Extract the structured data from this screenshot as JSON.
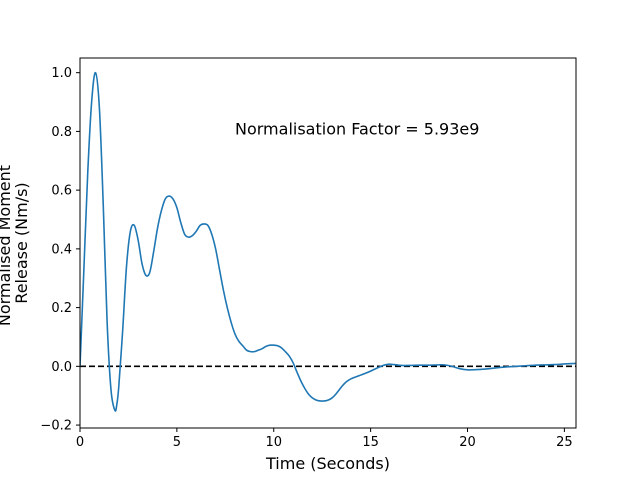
{
  "chart_data": {
    "type": "line",
    "title": "",
    "xlabel": "Time (Seconds)",
    "ylabel_lines": [
      "Normalised Moment",
      "Release (Nm/s)"
    ],
    "xlim": [
      0,
      25.6
    ],
    "ylim": [
      -0.21,
      1.05
    ],
    "xticks": [
      0,
      5,
      10,
      15,
      20,
      25
    ],
    "yticks": [
      -0.2,
      0.0,
      0.2,
      0.4,
      0.6,
      0.8,
      1.0
    ],
    "xtick_labels": [
      "0",
      "5",
      "10",
      "15",
      "20",
      "25"
    ],
    "ytick_labels": [
      "−0.2",
      "0.0",
      "0.2",
      "0.4",
      "0.6",
      "0.8",
      "1.0"
    ],
    "grid": false,
    "annotation": {
      "text": "Normalisation Factor = 5.93e9",
      "x": 8.0,
      "y": 0.81
    },
    "reference_line": {
      "y": 0.0,
      "style": "dashed",
      "color": "#000000"
    },
    "series": [
      {
        "color": "#1f77b4",
        "x": [
          0.0,
          0.2,
          0.4,
          0.6,
          0.8,
          1.0,
          1.2,
          1.4,
          1.6,
          1.8,
          1.9,
          2.0,
          2.2,
          2.4,
          2.6,
          2.8,
          3.0,
          3.2,
          3.4,
          3.6,
          3.8,
          4.0,
          4.2,
          4.4,
          4.6,
          4.8,
          5.0,
          5.2,
          5.4,
          5.6,
          5.8,
          6.0,
          6.2,
          6.4,
          6.6,
          6.8,
          7.0,
          7.2,
          7.4,
          7.6,
          7.8,
          8.0,
          8.2,
          8.4,
          8.6,
          8.8,
          9.0,
          9.2,
          9.4,
          9.6,
          9.8,
          10.0,
          10.2,
          10.4,
          10.6,
          10.8,
          11.0,
          11.2,
          11.4,
          11.6,
          11.8,
          12.0,
          12.2,
          12.4,
          12.6,
          12.8,
          13.0,
          13.2,
          13.4,
          13.6,
          13.8,
          14.0,
          14.4,
          14.8,
          15.2,
          15.6,
          15.9,
          16.2,
          16.6,
          17.0,
          17.5,
          18.0,
          18.5,
          18.8,
          19.2,
          19.6,
          20.0,
          20.5,
          21.0,
          21.5,
          22.0,
          22.5,
          23.0,
          23.5,
          24.0,
          24.5,
          25.0,
          25.6
        ],
        "y": [
          0.0,
          0.33,
          0.66,
          0.9,
          1.0,
          0.88,
          0.55,
          0.15,
          -0.08,
          -0.15,
          -0.13,
          -0.07,
          0.12,
          0.34,
          0.46,
          0.48,
          0.43,
          0.35,
          0.31,
          0.32,
          0.39,
          0.47,
          0.53,
          0.57,
          0.58,
          0.57,
          0.54,
          0.49,
          0.45,
          0.44,
          0.445,
          0.46,
          0.48,
          0.485,
          0.48,
          0.45,
          0.4,
          0.33,
          0.26,
          0.2,
          0.15,
          0.11,
          0.085,
          0.07,
          0.055,
          0.05,
          0.05,
          0.055,
          0.06,
          0.068,
          0.072,
          0.072,
          0.07,
          0.063,
          0.05,
          0.035,
          0.012,
          -0.02,
          -0.05,
          -0.075,
          -0.095,
          -0.108,
          -0.115,
          -0.118,
          -0.118,
          -0.115,
          -0.108,
          -0.095,
          -0.078,
          -0.062,
          -0.05,
          -0.042,
          -0.032,
          -0.022,
          -0.01,
          0.002,
          0.007,
          0.006,
          0.003,
          0.003,
          0.004,
          0.004,
          0.005,
          0.005,
          0.0,
          -0.008,
          -0.012,
          -0.011,
          -0.009,
          -0.005,
          -0.002,
          0.0,
          0.002,
          0.004,
          0.005,
          0.006,
          0.008,
          0.01
        ]
      }
    ]
  }
}
